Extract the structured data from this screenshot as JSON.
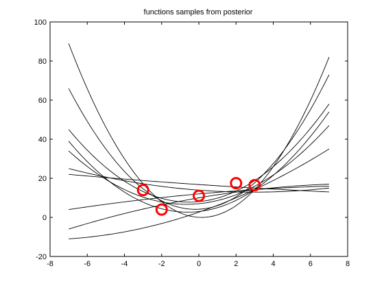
{
  "chart_data": {
    "type": "line",
    "title": "functions samples from posterior",
    "xlabel": "",
    "ylabel": "",
    "xlim": [
      -8,
      8
    ],
    "ylim": [
      -20,
      100
    ],
    "x_ticks": [
      -8,
      -6,
      -4,
      -2,
      0,
      2,
      4,
      6,
      8
    ],
    "y_ticks": [
      -20,
      0,
      20,
      40,
      60,
      80,
      100
    ],
    "grid": false,
    "legend": "none",
    "line_color": "#000000",
    "marker_color": "#ff0000",
    "x_range": [
      -7,
      7
    ],
    "series": [
      {
        "x": [
          -7,
          -2,
          7
        ],
        "y": [
          89,
          8,
          82
        ]
      },
      {
        "x": [
          -7,
          -1,
          7
        ],
        "y": [
          66,
          5,
          73
        ]
      },
      {
        "x": [
          -7,
          -1,
          7
        ],
        "y": [
          45,
          8,
          58
        ]
      },
      {
        "x": [
          -7,
          0,
          7
        ],
        "y": [
          39,
          3,
          54
        ]
      },
      {
        "x": [
          -7,
          0,
          7
        ],
        "y": [
          34,
          7,
          47
        ]
      },
      {
        "x": [
          -7,
          2,
          7
        ],
        "y": [
          25,
          13,
          15
        ]
      },
      {
        "x": [
          -7,
          3,
          7
        ],
        "y": [
          22,
          15,
          13
        ]
      },
      {
        "x": [
          -7,
          0,
          7
        ],
        "y": [
          4,
          12,
          16
        ]
      },
      {
        "x": [
          -7,
          0,
          7
        ],
        "y": [
          -6,
          10,
          17
        ]
      },
      {
        "x": [
          -7,
          2,
          7
        ],
        "y": [
          -11,
          10,
          35
        ]
      }
    ],
    "observations": {
      "x": [
        -3,
        -2,
        0,
        2,
        3
      ],
      "y": [
        14,
        4,
        11,
        17.5,
        16.5
      ]
    }
  }
}
